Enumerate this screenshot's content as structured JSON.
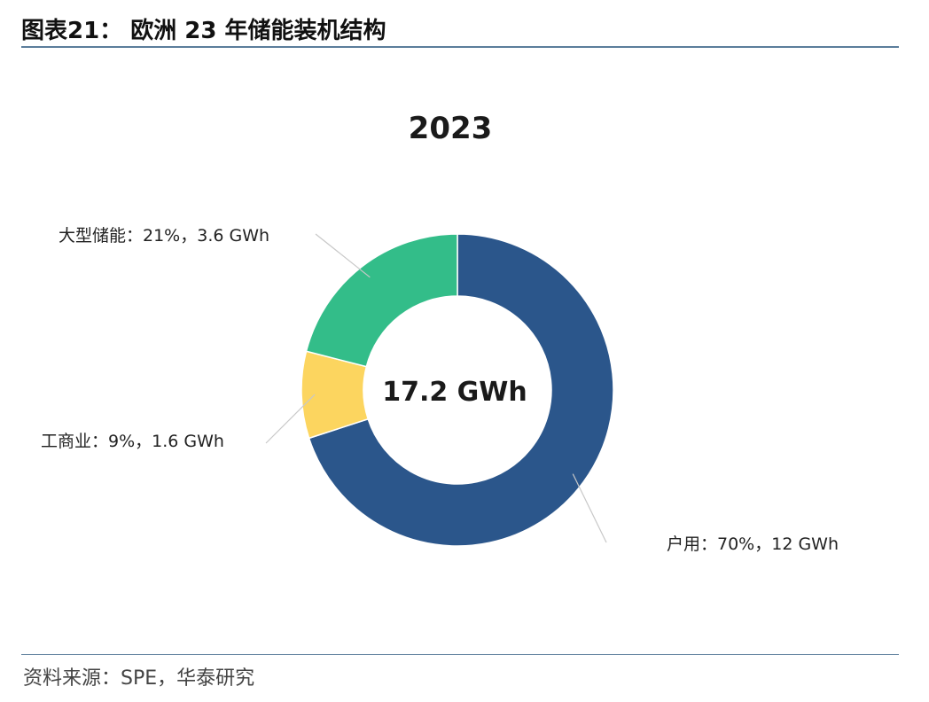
{
  "figure": {
    "title": "图表21： 欧洲 23 年储能装机结构",
    "source": "资料来源：SPE，华泰研究"
  },
  "chart_data": {
    "type": "pie",
    "title": "2023",
    "center_label": "17.2 GWh",
    "total": 17.2,
    "unit": "GWh",
    "slices": [
      {
        "name": "户用",
        "percent": 70,
        "value": 12,
        "label": "户用：70%，12 GWh",
        "color": "#2b568b"
      },
      {
        "name": "工商业",
        "percent": 9,
        "value": 1.6,
        "label": "工商业：9%，1.6 GWh",
        "color": "#fcd55f"
      },
      {
        "name": "大型储能",
        "percent": 21,
        "value": 3.6,
        "label": "大型储能：21%，3.6 GWh",
        "color": "#33bd89"
      }
    ]
  }
}
